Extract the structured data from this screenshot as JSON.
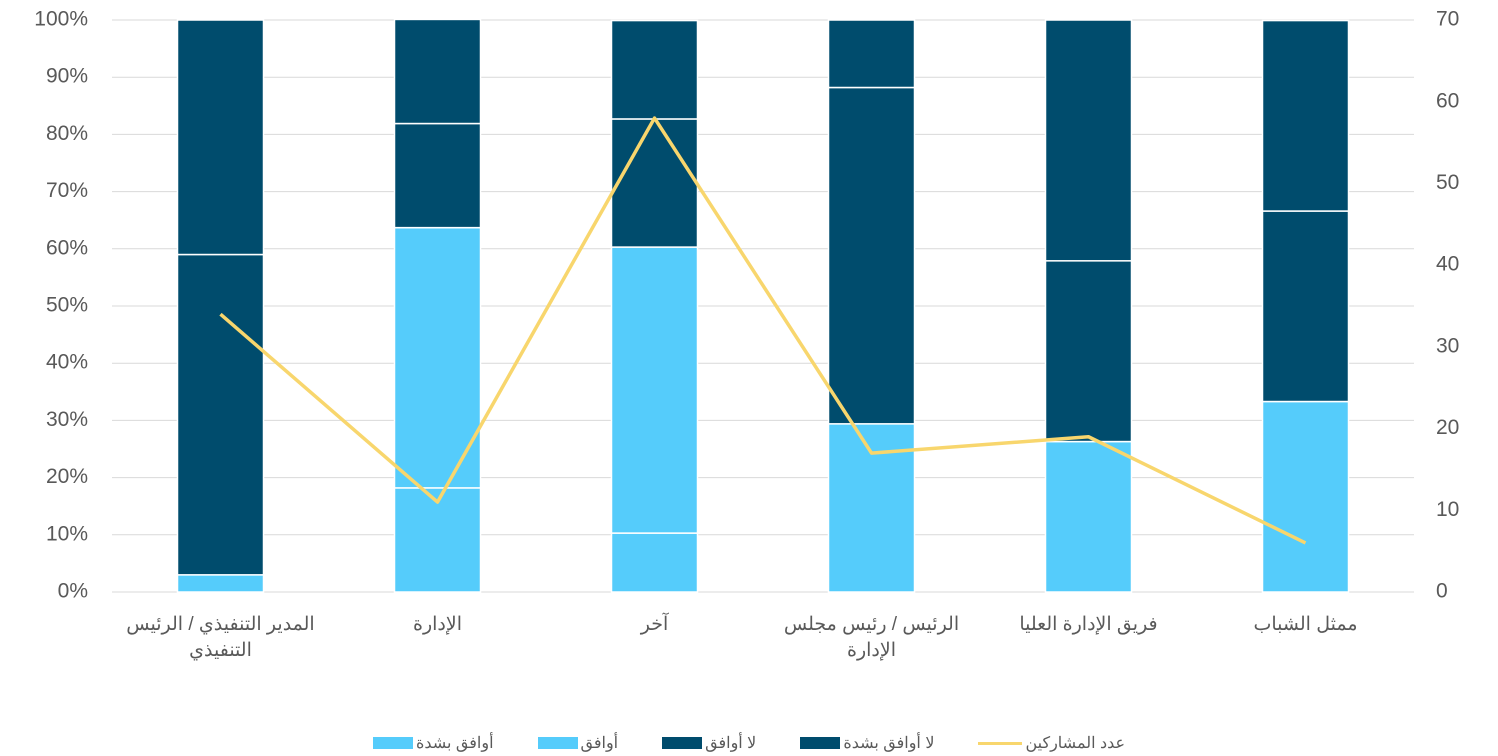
{
  "chart_data": {
    "type": "stacked_bar_line",
    "categories": [
      "المدير التنفيذي / الرئيس التنفيذي",
      "الإدارة",
      "آخر",
      "الرئيس / رئيس مجلس الإدارة",
      "فريق الإدارة العليا",
      "ممثل الشباب"
    ],
    "series": [
      {
        "name": "أوافق بشدة",
        "color": "#55ccfb",
        "values": [
          3,
          18.2,
          10.3,
          29.4,
          26.3,
          33.3
        ]
      },
      {
        "name": "أوافق",
        "color": "#55ccfb",
        "values": [
          0,
          45.5,
          50,
          0,
          0,
          0
        ]
      },
      {
        "name": "لا أوافق",
        "color": "#004c6d",
        "values": [
          56,
          18.2,
          22.4,
          58.8,
          31.6,
          33.3
        ]
      },
      {
        "name": "لا أوافق بشدة",
        "color": "#004c6d",
        "values": [
          41,
          18.2,
          17.2,
          11.8,
          42.1,
          33.3
        ]
      },
      {
        "name": "عدد المشاركين",
        "color": "#f8d66d",
        "axis": "y2",
        "type": "line",
        "values": [
          34,
          11,
          58,
          17,
          19,
          6
        ]
      }
    ],
    "ylim": [
      0,
      100
    ],
    "yticks": [
      {
        "value": 0,
        "label": "0%"
      },
      {
        "value": 10,
        "label": "10%"
      },
      {
        "value": 20,
        "label": "20%"
      },
      {
        "value": 30,
        "label": "30%"
      },
      {
        "value": 40,
        "label": "40%"
      },
      {
        "value": 50,
        "label": "50%"
      },
      {
        "value": 60,
        "label": "60%"
      },
      {
        "value": 70,
        "label": "70%"
      },
      {
        "value": 80,
        "label": "80%"
      },
      {
        "value": 90,
        "label": "90%"
      },
      {
        "value": 100,
        "label": "100%"
      }
    ],
    "y2lim": [
      0,
      70
    ],
    "y2ticks": [
      0,
      10,
      20,
      30,
      40,
      50,
      60,
      70
    ],
    "grid": true,
    "legend": "bottom"
  }
}
